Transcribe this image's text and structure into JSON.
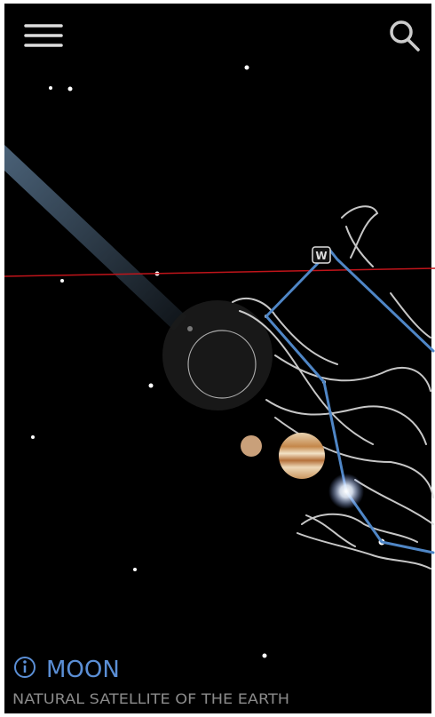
{
  "marker": {
    "label": "W"
  },
  "info": {
    "title": "MOON",
    "subtitle": "NATURAL SATELLITE OF THE EARTH"
  }
}
